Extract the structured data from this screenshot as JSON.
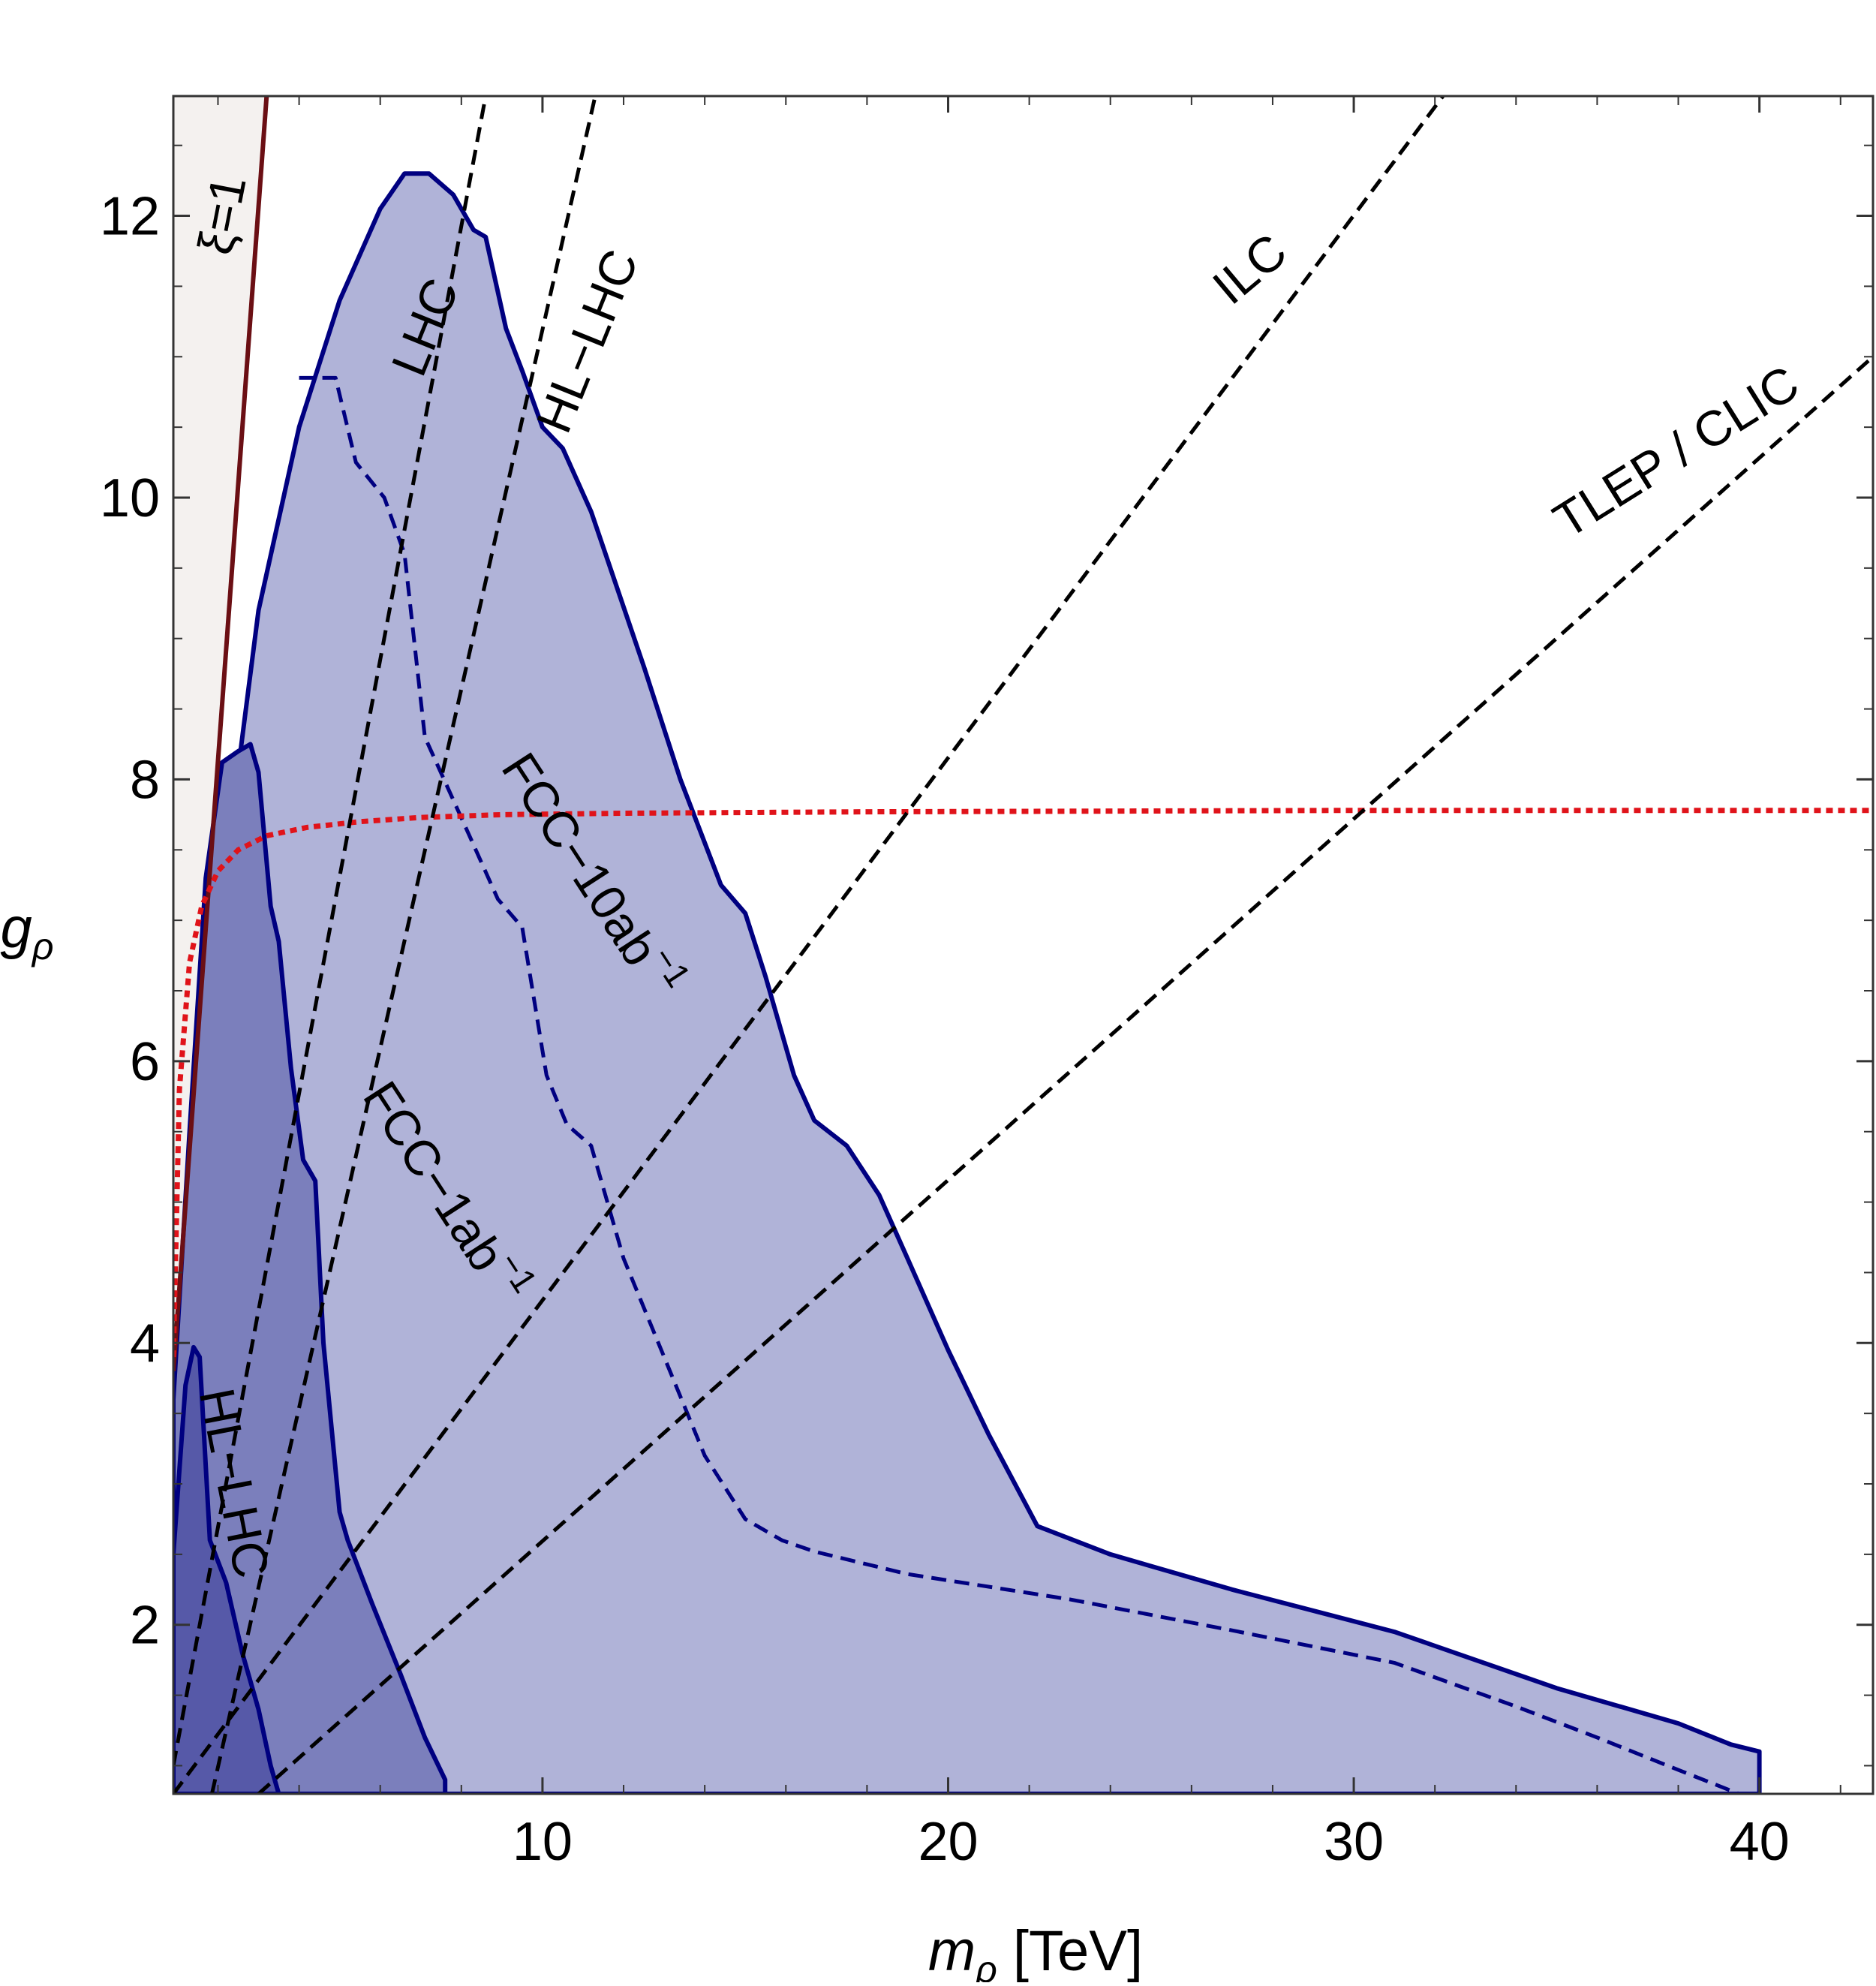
{
  "chart_data": {
    "type": "area",
    "xlabel": "m_ρ [TeV]",
    "ylabel": "g_ρ",
    "xlabel_parts": {
      "var": "m",
      "sub": "ρ",
      "unit": " [TeV]"
    },
    "ylabel_parts": {
      "var": "g",
      "sub": "ρ"
    },
    "xlim": [
      0.9,
      42.8
    ],
    "ylim": [
      0.8,
      12.85
    ],
    "x_ticks": [
      10,
      20,
      30,
      40
    ],
    "y_ticks": [
      2,
      4,
      6,
      8,
      10,
      12
    ],
    "grid": false,
    "legend": "none",
    "regions": [
      {
        "name": "FCC-10ab-1",
        "color": "#b0b3d8",
        "boundary": [
          [
            0.9,
            0.8
          ],
          [
            0.9,
            3.0
          ],
          [
            1.3,
            4.5
          ],
          [
            1.8,
            6.6
          ],
          [
            2.2,
            7.4
          ],
          [
            3.0,
            9.2
          ],
          [
            4.0,
            10.5
          ],
          [
            5.0,
            11.4
          ],
          [
            6.0,
            12.05
          ],
          [
            6.6,
            12.3
          ],
          [
            7.2,
            12.3
          ],
          [
            7.8,
            12.15
          ],
          [
            8.3,
            11.9
          ],
          [
            8.6,
            11.85
          ],
          [
            9.1,
            11.2
          ],
          [
            9.5,
            10.9
          ],
          [
            10.0,
            10.5
          ],
          [
            10.5,
            10.35
          ],
          [
            11.2,
            9.9
          ],
          [
            12.5,
            8.8
          ],
          [
            13.4,
            8.0
          ],
          [
            14.4,
            7.25
          ],
          [
            15.0,
            7.05
          ],
          [
            15.5,
            6.6
          ],
          [
            16.2,
            5.9
          ],
          [
            16.7,
            5.58
          ],
          [
            17.5,
            5.4
          ],
          [
            18.3,
            5.05
          ],
          [
            19.0,
            4.6
          ],
          [
            20.0,
            3.95
          ],
          [
            21.0,
            3.35
          ],
          [
            22.2,
            2.7
          ],
          [
            24.0,
            2.5
          ],
          [
            27.0,
            2.25
          ],
          [
            31.0,
            1.95
          ],
          [
            35.0,
            1.55
          ],
          [
            38.0,
            1.3
          ],
          [
            39.3,
            1.15
          ],
          [
            40.0,
            1.1
          ],
          [
            40.0,
            0.8
          ]
        ]
      },
      {
        "name": "HL-LHC",
        "color": "#7b7fbc",
        "boundary": [
          [
            0.9,
            0.8
          ],
          [
            0.9,
            3.6
          ],
          [
            1.3,
            5.5
          ],
          [
            1.7,
            7.3
          ],
          [
            2.1,
            8.12
          ],
          [
            2.5,
            8.2
          ],
          [
            2.8,
            8.25
          ],
          [
            3.0,
            8.05
          ],
          [
            3.3,
            7.1
          ],
          [
            3.5,
            6.85
          ],
          [
            3.8,
            5.95
          ],
          [
            4.1,
            5.3
          ],
          [
            4.4,
            5.15
          ],
          [
            4.6,
            4.0
          ],
          [
            5.0,
            2.8
          ],
          [
            5.2,
            2.6
          ],
          [
            5.8,
            2.15
          ],
          [
            6.5,
            1.65
          ],
          [
            7.1,
            1.2
          ],
          [
            7.6,
            0.9
          ],
          [
            7.6,
            0.8
          ]
        ]
      },
      {
        "name": "LHC",
        "color": "#5659a8",
        "boundary": [
          [
            0.9,
            0.8
          ],
          [
            0.9,
            2.5
          ],
          [
            1.2,
            3.7
          ],
          [
            1.4,
            3.97
          ],
          [
            1.55,
            3.9
          ],
          [
            1.8,
            2.6
          ],
          [
            2.2,
            2.3
          ],
          [
            2.6,
            1.8
          ],
          [
            3.0,
            1.4
          ],
          [
            3.3,
            1.0
          ],
          [
            3.5,
            0.8
          ]
        ]
      }
    ],
    "series": [
      {
        "name": "FCC-1ab-1",
        "style": "dashed",
        "color": "#000080",
        "points": [
          [
            4.0,
            10.85
          ],
          [
            4.9,
            10.85
          ],
          [
            5.4,
            10.25
          ],
          [
            6.1,
            10.0
          ],
          [
            6.6,
            9.6
          ],
          [
            7.1,
            8.3
          ],
          [
            8.2,
            7.6
          ],
          [
            8.9,
            7.15
          ],
          [
            9.5,
            6.95
          ],
          [
            10.1,
            5.9
          ],
          [
            10.6,
            5.55
          ],
          [
            11.2,
            5.4
          ],
          [
            12.0,
            4.6
          ],
          [
            13.0,
            3.9
          ],
          [
            14.0,
            3.2
          ],
          [
            15.0,
            2.75
          ],
          [
            15.9,
            2.6
          ],
          [
            16.7,
            2.52
          ],
          [
            19.0,
            2.36
          ],
          [
            23.0,
            2.18
          ],
          [
            27.0,
            1.96
          ],
          [
            31.0,
            1.73
          ],
          [
            34.0,
            1.42
          ],
          [
            36.0,
            1.2
          ],
          [
            38.0,
            0.97
          ],
          [
            39.5,
            0.8
          ]
        ]
      },
      {
        "name": "ξ=1",
        "style": "solid",
        "color": "#6b0f14",
        "points": [
          [
            0.9,
            3.8
          ],
          [
            3.2,
            12.85
          ]
        ]
      },
      {
        "name": "red-dotted",
        "style": "dotted",
        "color": "#e0131a",
        "points": [
          [
            0.9,
            3.9
          ],
          [
            1.05,
            5.8
          ],
          [
            1.3,
            6.7
          ],
          [
            1.6,
            7.1
          ],
          [
            2.0,
            7.35
          ],
          [
            2.5,
            7.5
          ],
          [
            3.2,
            7.6
          ],
          [
            4.2,
            7.66
          ],
          [
            5.5,
            7.7
          ],
          [
            7.0,
            7.73
          ],
          [
            9.0,
            7.75
          ],
          [
            12.0,
            7.76
          ],
          [
            18.0,
            7.77
          ],
          [
            30.0,
            7.78
          ],
          [
            42.8,
            7.78
          ]
        ]
      },
      {
        "name": "LHC",
        "style": "dashed",
        "color": "#000000",
        "points": [
          [
            0.9,
            1.0
          ],
          [
            8.6,
            12.85
          ]
        ]
      },
      {
        "name": "HL-LHC",
        "style": "dashed",
        "color": "#000000",
        "points": [
          [
            1.85,
            0.8
          ],
          [
            11.3,
            12.85
          ]
        ]
      },
      {
        "name": "ILC",
        "style": "dashed",
        "color": "#000000",
        "points": [
          [
            0.9,
            0.8
          ],
          [
            32.2,
            12.85
          ]
        ]
      },
      {
        "name": "TLEP / CLIC",
        "style": "dashed",
        "color": "#000000",
        "points": [
          [
            3.0,
            0.8
          ],
          [
            42.8,
            11.0
          ]
        ]
      }
    ],
    "annotations": [
      {
        "text": "ξ=1",
        "x": 2.2,
        "y": 12.0,
        "angle": -79
      },
      {
        "text": "LHC",
        "x": 7.2,
        "y": 11.2,
        "angle": -68
      },
      {
        "text": "HL−LHC",
        "x": 11.2,
        "y": 11.1,
        "angle": -68
      },
      {
        "text": "ILC",
        "x": 27.5,
        "y": 11.6,
        "angle": -40
      },
      {
        "text": "TLEP / CLIC",
        "x": 38.0,
        "y": 10.3,
        "angle": -32
      },
      {
        "text": "FCC−10ab",
        "sup": "−1",
        "x": 11.1,
        "y": 7.3,
        "angle": 57
      },
      {
        "text": "FCC−1ab",
        "sup": "−1",
        "x": 7.5,
        "y": 5.05,
        "angle": 57
      },
      {
        "text": "HL−LHC",
        "x": 2.3,
        "y": 3.0,
        "angle": 79
      }
    ]
  }
}
